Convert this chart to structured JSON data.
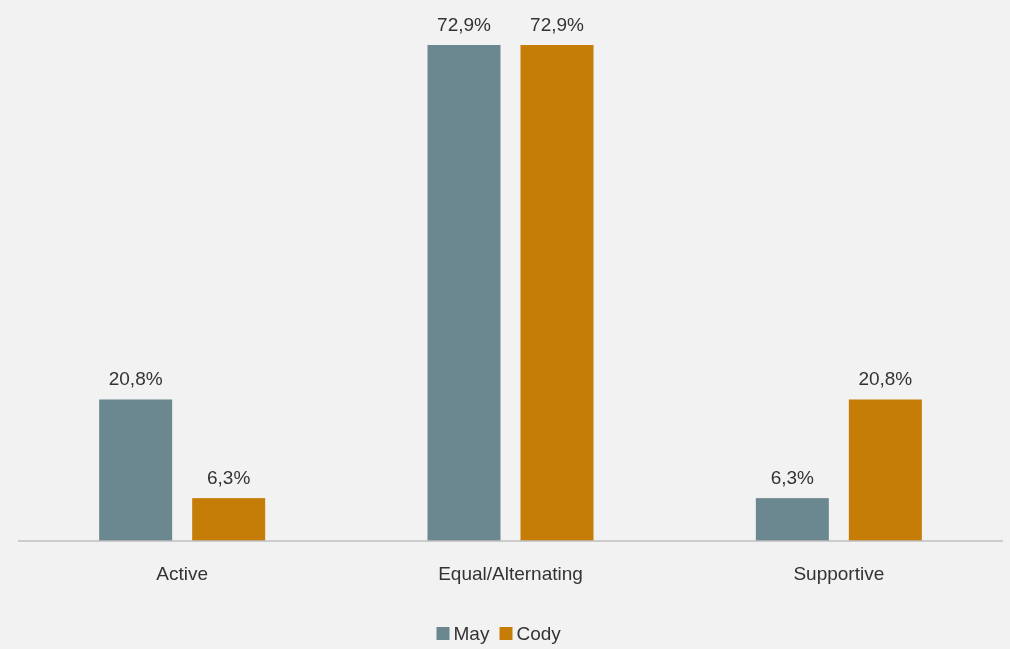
{
  "chart_data": {
    "type": "bar",
    "categories": [
      "Active",
      "Equal/Alternating",
      "Supportive"
    ],
    "series": [
      {
        "name": "May",
        "color": "#6b8890",
        "values": [
          20.8,
          72.9,
          6.3
        ],
        "value_labels": [
          "20,8%",
          "72,9%",
          "6,3%"
        ]
      },
      {
        "name": "Cody",
        "color": "#c57d08",
        "values": [
          6.3,
          72.9,
          20.8
        ],
        "value_labels": [
          "6,3%",
          "72,9%",
          "20,8%"
        ]
      }
    ],
    "legend": "bottom"
  }
}
